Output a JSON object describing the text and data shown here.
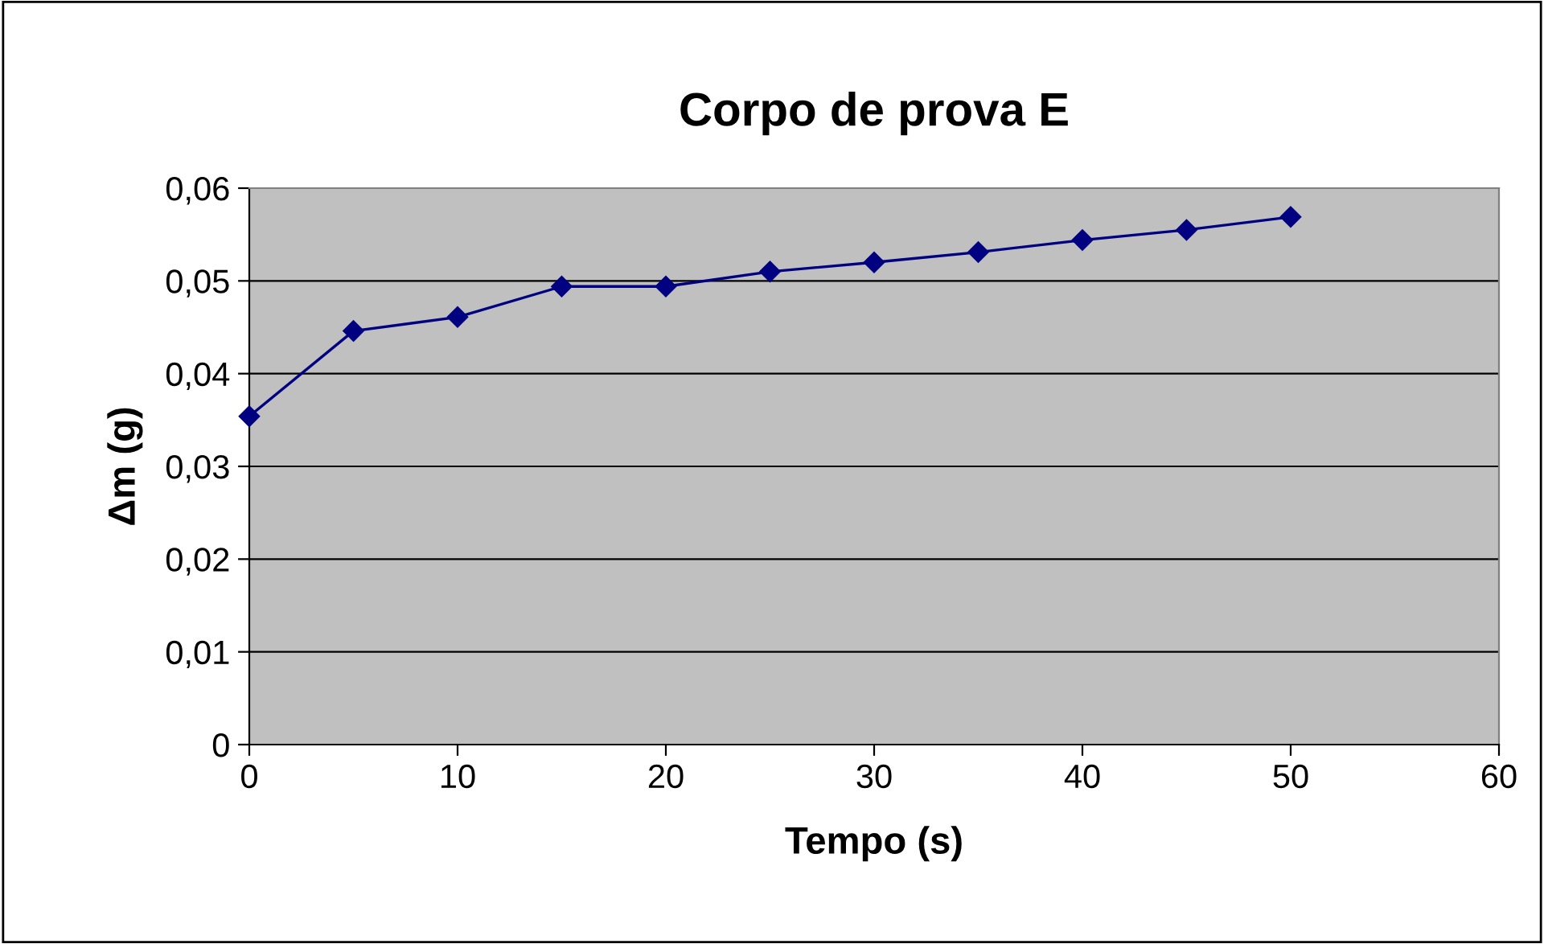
{
  "chart_data": {
    "type": "line",
    "title": "Corpo de prova E",
    "xlabel": "Tempo (s)",
    "ylabel": "Δm (g)",
    "x": [
      0,
      5,
      10,
      15,
      20,
      25,
      30,
      35,
      40,
      45,
      50
    ],
    "series": [
      {
        "color": "#000080",
        "values": [
          0.0354,
          0.0446,
          0.0461,
          0.0494,
          0.0494,
          0.051,
          0.052,
          0.0531,
          0.0544,
          0.0555,
          0.0569
        ]
      }
    ],
    "xlim": [
      0,
      60
    ],
    "xticks": [
      0,
      10,
      20,
      30,
      40,
      50,
      60
    ],
    "ylim": [
      0,
      0.06
    ],
    "yticks": [
      {
        "value": 0,
        "label": "0"
      },
      {
        "value": 0.01,
        "label": "0,01"
      },
      {
        "value": 0.02,
        "label": "0,02"
      },
      {
        "value": 0.03,
        "label": "0,03"
      },
      {
        "value": 0.04,
        "label": "0,04"
      },
      {
        "value": 0.05,
        "label": "0,05"
      },
      {
        "value": 0.06,
        "label": "0,06"
      }
    ],
    "grid": "y",
    "marker": "diamond",
    "line_style": "solid",
    "legend": false
  }
}
